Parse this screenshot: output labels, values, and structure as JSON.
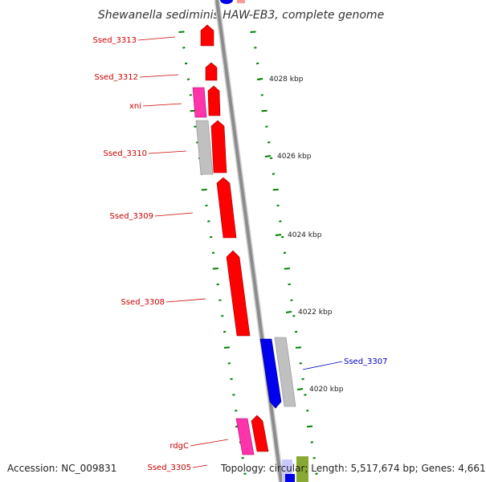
{
  "title": "Shewanella sediminis HAW-EB3, complete genome",
  "accession_text": "Accession: NC_009831",
  "summary_text": "Topology: circular; Length: 5,517,674 bp; Genes: 4,661",
  "colors": {
    "backbone": "#8c8c8c",
    "forward_cds": "#ff0000",
    "reverse_cds": "#0000ee",
    "trna_like": "#ff33aa",
    "gray_feature": "#bfbfbf",
    "tick": "#008000",
    "forward_label": "#cc0000",
    "reverse_label": "#0000cc"
  },
  "kbp_labels": [
    "4028 kbp",
    "4026 kbp",
    "4024 kbp",
    "4022 kbp",
    "4020 kbp"
  ],
  "gene_labels": [
    "Ssed_3313",
    "Ssed_3312",
    "xni",
    "Ssed_3310",
    "Ssed_3309",
    "Ssed_3308",
    "Ssed_3307",
    "rdgC",
    "Ssed_3305"
  ]
}
